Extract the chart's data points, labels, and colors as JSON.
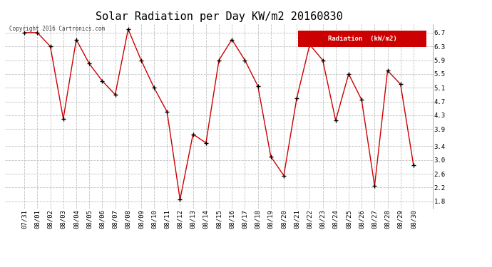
{
  "title": "Solar Radiation per Day KW/m2 20160830",
  "copyright_text": "Copyright 2016 Cartronics.com",
  "legend_label": "Radiation  (kW/m2)",
  "dates": [
    "07/31",
    "08/01",
    "08/02",
    "08/03",
    "08/04",
    "08/05",
    "08/06",
    "08/07",
    "08/08",
    "08/09",
    "08/10",
    "08/11",
    "08/12",
    "08/13",
    "08/14",
    "08/15",
    "08/16",
    "08/17",
    "08/18",
    "08/19",
    "08/20",
    "08/21",
    "08/22",
    "08/23",
    "08/24",
    "08/25",
    "08/26",
    "08/27",
    "08/28",
    "08/29",
    "08/30"
  ],
  "values": [
    6.7,
    6.7,
    6.3,
    4.2,
    6.5,
    5.8,
    5.3,
    4.9,
    6.8,
    5.9,
    5.1,
    4.4,
    1.85,
    3.75,
    3.5,
    5.9,
    6.5,
    5.9,
    5.15,
    3.1,
    2.55,
    4.8,
    6.35,
    5.9,
    4.15,
    5.5,
    4.75,
    2.25,
    5.6,
    5.2,
    2.85
  ],
  "line_color": "#cc0000",
  "marker_color": "#000000",
  "legend_bg": "#cc0000",
  "legend_text_color": "#ffffff",
  "bg_color": "#ffffff",
  "plot_bg_color": "#ffffff",
  "grid_color": "#c0c0c0",
  "title_fontsize": 11,
  "tick_fontsize": 6.5,
  "yticks": [
    1.8,
    2.2,
    2.6,
    3.0,
    3.4,
    3.9,
    4.3,
    4.7,
    5.1,
    5.5,
    5.9,
    6.3,
    6.7
  ],
  "ylim": [
    1.6,
    6.95
  ],
  "figsize": [
    6.9,
    3.75
  ],
  "dpi": 100
}
